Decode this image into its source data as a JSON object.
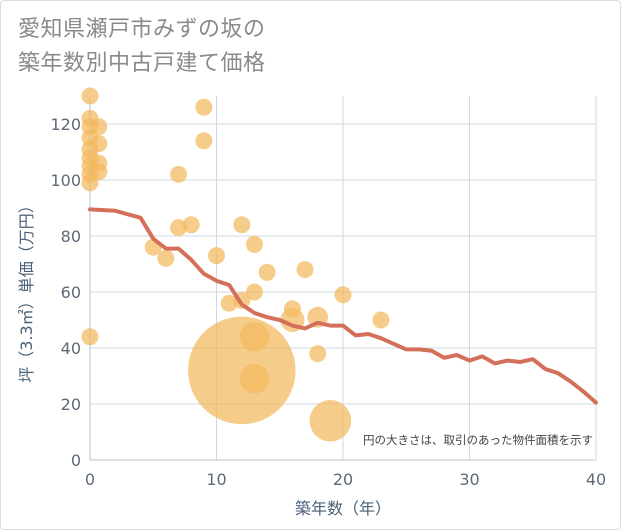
{
  "title_lines": [
    "愛知県瀬戸市みずの坂の",
    "築年数別中古戸建て価格"
  ],
  "chart_data": {
    "type": "scatter",
    "xlabel": "築年数（年）",
    "ylabel": "坪（3.3㎡）単価（万円）",
    "xlim": [
      0,
      40
    ],
    "ylim": [
      0,
      130
    ],
    "x_ticks": [
      0,
      10,
      20,
      30,
      40
    ],
    "y_ticks": [
      0,
      20,
      40,
      60,
      80,
      100,
      120
    ],
    "grid": true,
    "note": "円の大きさは、取引のあった物件面積を示す",
    "colors": {
      "bubble": "#f2b85e",
      "trend": "#d4705a",
      "grid": "#cfd8e3"
    },
    "bubbles": [
      {
        "x": 0,
        "y": 130,
        "size": 1
      },
      {
        "x": 0,
        "y": 122,
        "size": 1
      },
      {
        "x": 0,
        "y": 119,
        "size": 1
      },
      {
        "x": 0,
        "y": 115,
        "size": 1
      },
      {
        "x": 0,
        "y": 111,
        "size": 1
      },
      {
        "x": 0,
        "y": 108,
        "size": 1
      },
      {
        "x": 0,
        "y": 105,
        "size": 1
      },
      {
        "x": 0,
        "y": 102,
        "size": 1
      },
      {
        "x": 0,
        "y": 99,
        "size": 1
      },
      {
        "x": 0,
        "y": 44,
        "size": 1
      },
      {
        "x": 0.7,
        "y": 119,
        "size": 1
      },
      {
        "x": 0.7,
        "y": 113,
        "size": 1
      },
      {
        "x": 0.7,
        "y": 106,
        "size": 1
      },
      {
        "x": 0.7,
        "y": 103,
        "size": 1
      },
      {
        "x": 5,
        "y": 76,
        "size": 1
      },
      {
        "x": 6,
        "y": 72,
        "size": 1
      },
      {
        "x": 7,
        "y": 102,
        "size": 1
      },
      {
        "x": 7,
        "y": 83,
        "size": 1
      },
      {
        "x": 8,
        "y": 84,
        "size": 1
      },
      {
        "x": 9,
        "y": 126,
        "size": 1
      },
      {
        "x": 9,
        "y": 114,
        "size": 1
      },
      {
        "x": 10,
        "y": 73,
        "size": 1
      },
      {
        "x": 11,
        "y": 56,
        "size": 1
      },
      {
        "x": 12,
        "y": 84,
        "size": 1
      },
      {
        "x": 12,
        "y": 57,
        "size": 1
      },
      {
        "x": 12,
        "y": 32,
        "size": 40
      },
      {
        "x": 13,
        "y": 77,
        "size": 1
      },
      {
        "x": 13,
        "y": 60,
        "size": 1
      },
      {
        "x": 13,
        "y": 44,
        "size": 3
      },
      {
        "x": 13,
        "y": 29,
        "size": 3
      },
      {
        "x": 14,
        "y": 67,
        "size": 1
      },
      {
        "x": 16,
        "y": 54,
        "size": 1
      },
      {
        "x": 16,
        "y": 50,
        "size": 2
      },
      {
        "x": 17,
        "y": 68,
        "size": 1
      },
      {
        "x": 18,
        "y": 51,
        "size": 1.5
      },
      {
        "x": 18,
        "y": 38,
        "size": 1
      },
      {
        "x": 19,
        "y": 14,
        "size": 6
      },
      {
        "x": 20,
        "y": 59,
        "size": 1
      },
      {
        "x": 23,
        "y": 50,
        "size": 1
      }
    ],
    "trend_line": {
      "x": [
        0,
        2,
        4,
        5,
        6,
        7,
        8,
        9,
        10,
        11,
        12,
        13,
        14,
        15,
        16,
        17,
        18,
        19,
        20,
        21,
        22,
        23,
        24,
        25,
        26,
        27,
        28,
        29,
        30,
        31,
        32,
        33,
        34,
        35,
        36,
        37,
        38,
        39,
        40
      ],
      "y": [
        89.5,
        89,
        86.5,
        79,
        75.5,
        75.5,
        71.5,
        66.5,
        64,
        62.5,
        55.5,
        52.5,
        51,
        50,
        48,
        47,
        49,
        48,
        48,
        44.5,
        45,
        43.5,
        41.5,
        39.5,
        39.5,
        39,
        36.5,
        37.5,
        35.5,
        37,
        34.5,
        35.5,
        35,
        36,
        32.5,
        31,
        28,
        24.5,
        20.5
      ]
    }
  }
}
